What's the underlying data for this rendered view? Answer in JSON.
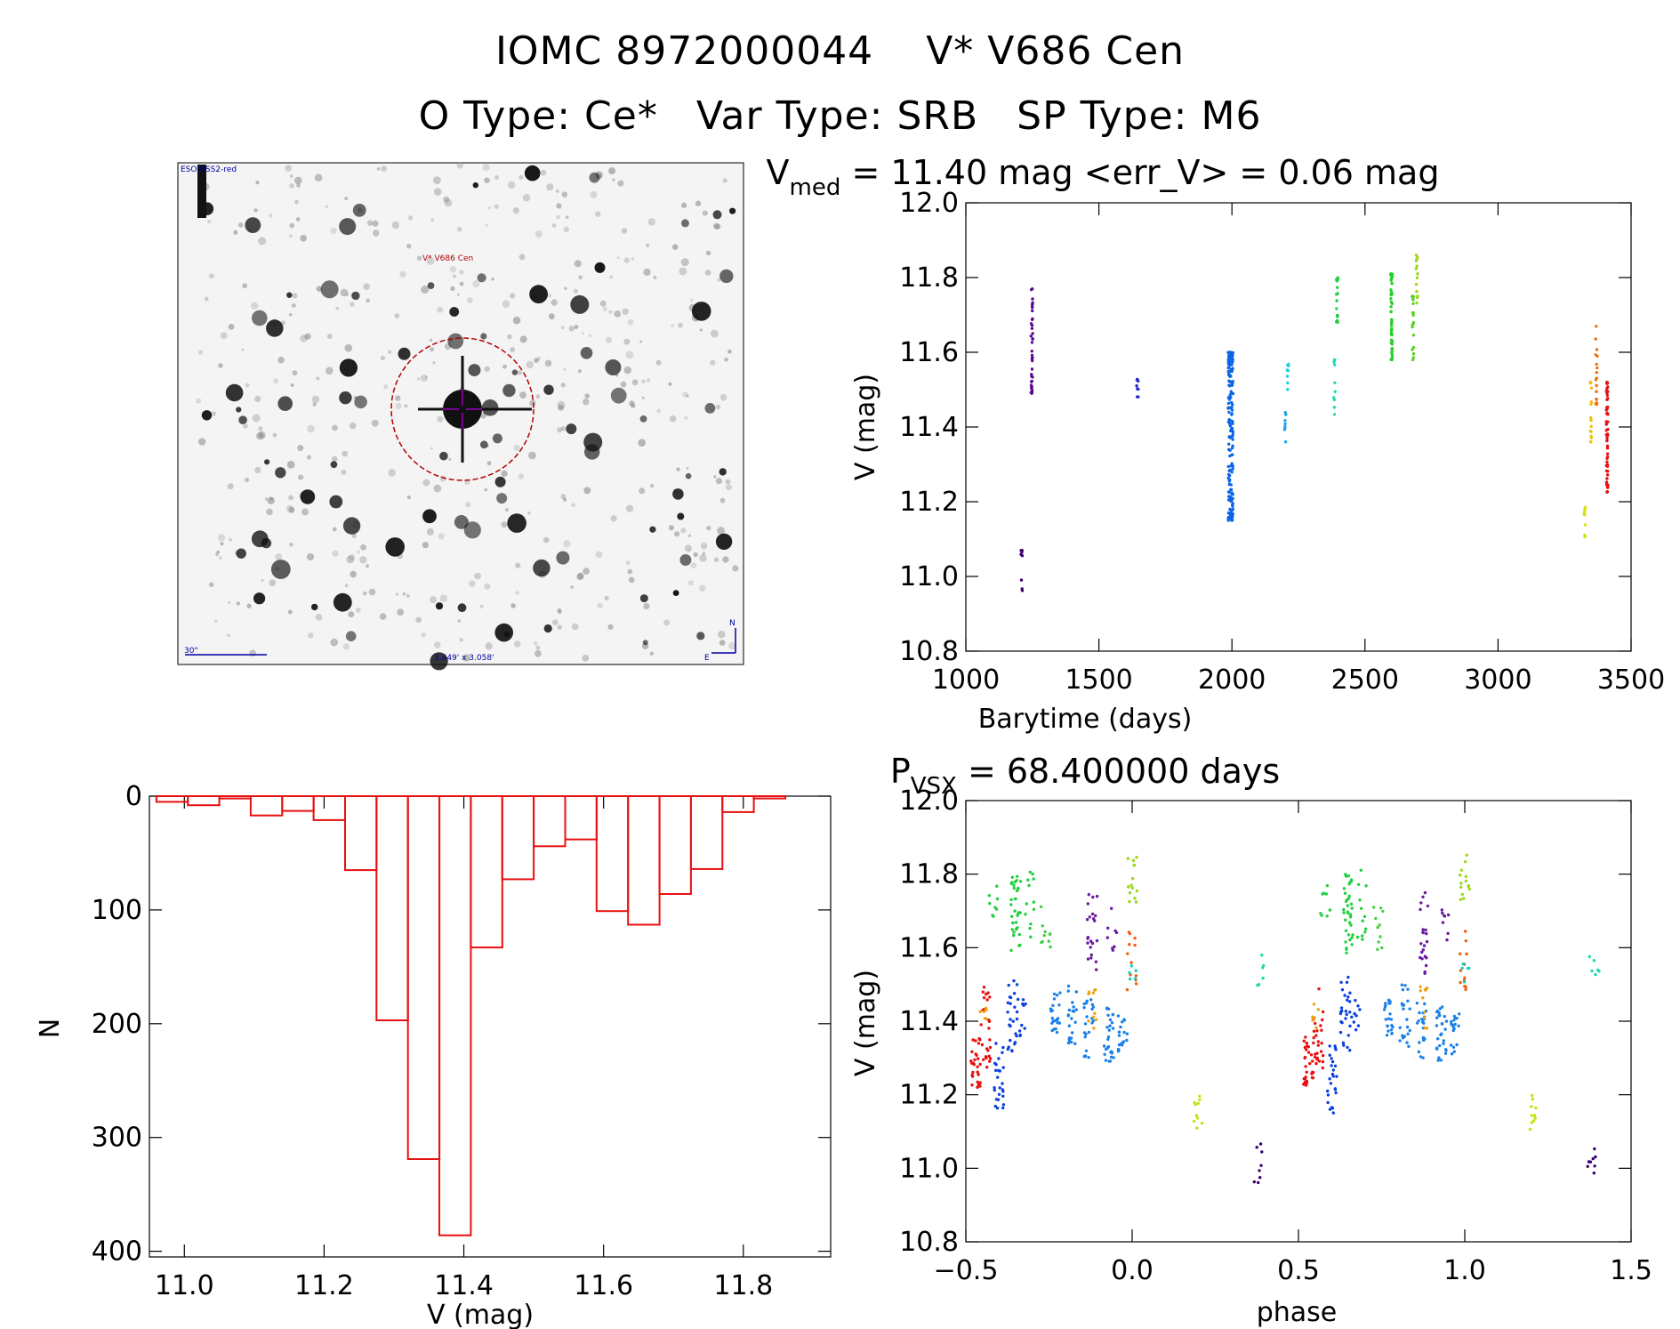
{
  "header": {
    "catalog_id": "IOMC 8972000044",
    "star_name": "V* V686 Cen",
    "otype": "O Type: Ce*",
    "vartype": "Var Type: SRB",
    "sptype": "SP Type: M6"
  },
  "finder": {
    "survey_label": "ESO USS2-red",
    "target_label": "V* V686 Cen",
    "scale_label": "30\"",
    "fov_label": "3.449' x 3.058'",
    "north_label": "N",
    "east_label": "E",
    "colors": {
      "background": "#f4f4f4",
      "stars": "#111111",
      "circle": "#b40000",
      "reticle": "#9a00c0",
      "annotation": "#0000a0"
    }
  },
  "chart_data": [
    {
      "id": "lightcurve",
      "type": "scatter",
      "title_main": "V",
      "title_sub": "med",
      "title_rest": " = 11.40 mag <err_V> = 0.06 mag",
      "xlabel": "Barytime (days)",
      "ylabel": "V (mag)",
      "xlim": [
        1000,
        3500
      ],
      "ylim": [
        12.0,
        10.8
      ],
      "xticks": [
        "1000",
        "1500",
        "2000",
        "2500",
        "3000",
        "3500"
      ],
      "yticks": [
        "10.8",
        "11.0",
        "11.2",
        "11.4",
        "11.6",
        "11.8",
        "12.0"
      ],
      "grid": false,
      "groups": [
        {
          "t": 1210,
          "ymin": 10.96,
          "ymax": 11.07,
          "n": 8,
          "color": "#3c0070"
        },
        {
          "t": 1248,
          "ymin": 11.49,
          "ymax": 11.77,
          "n": 40,
          "color": "#5a0a90"
        },
        {
          "t": 1645,
          "ymin": 11.48,
          "ymax": 11.53,
          "n": 8,
          "color": "#2828c8"
        },
        {
          "t": 1995,
          "ymin": 11.15,
          "ymax": 11.6,
          "n": 180,
          "color": "#0a64e6"
        },
        {
          "t": 2200,
          "ymin": 11.36,
          "ymax": 11.44,
          "n": 8,
          "color": "#1aa4e8"
        },
        {
          "t": 2210,
          "ymin": 11.5,
          "ymax": 11.57,
          "n": 8,
          "color": "#1ad0d8"
        },
        {
          "t": 2385,
          "ymin": 11.43,
          "ymax": 11.58,
          "n": 10,
          "color": "#20d8b0"
        },
        {
          "t": 2395,
          "ymin": 11.68,
          "ymax": 11.8,
          "n": 18,
          "color": "#20d040"
        },
        {
          "t": 2600,
          "ymin": 11.58,
          "ymax": 11.81,
          "n": 60,
          "color": "#2ad02a"
        },
        {
          "t": 2680,
          "ymin": 11.58,
          "ymax": 11.75,
          "n": 20,
          "color": "#5ad024"
        },
        {
          "t": 2695,
          "ymin": 11.73,
          "ymax": 11.86,
          "n": 15,
          "color": "#9ad818"
        },
        {
          "t": 3325,
          "ymin": 11.1,
          "ymax": 11.21,
          "n": 10,
          "color": "#d8e010"
        },
        {
          "t": 3350,
          "ymin": 11.36,
          "ymax": 11.52,
          "n": 18,
          "color": "#f0c010"
        },
        {
          "t": 3370,
          "ymin": 11.46,
          "ymax": 11.67,
          "n": 18,
          "color": "#f07010"
        },
        {
          "t": 3410,
          "ymin": 11.22,
          "ymax": 11.52,
          "n": 55,
          "color": "#e81010"
        }
      ]
    },
    {
      "id": "histogram",
      "type": "bar",
      "xlabel": "V (mag)",
      "ylabel": "N",
      "xlim": [
        10.95,
        11.925
      ],
      "ylim": [
        0,
        405
      ],
      "xticks": [
        "11.0",
        "11.2",
        "11.4",
        "11.6",
        "11.8"
      ],
      "yticks": [
        "0",
        "100",
        "200",
        "300",
        "400"
      ],
      "bin_width": 0.045,
      "bin_starts": [
        10.96,
        11.005,
        11.05,
        11.095,
        11.14,
        11.185,
        11.23,
        11.275,
        11.32,
        11.365,
        11.41,
        11.455,
        11.5,
        11.545,
        11.59,
        11.635,
        11.68,
        11.725,
        11.77,
        11.815,
        11.86
      ],
      "values": [
        5,
        8,
        2,
        17,
        13,
        21,
        65,
        197,
        319,
        386,
        133,
        73,
        44,
        38,
        101,
        113,
        86,
        64,
        14,
        2,
        0
      ],
      "color": "#e81010"
    },
    {
      "id": "phase",
      "type": "scatter",
      "title_main": "P",
      "title_sub": "VSX",
      "title_rest": " = 68.400000 days",
      "xlabel": "phase",
      "ylabel": "V (mag)",
      "xlim": [
        -0.5,
        1.5
      ],
      "ylim": [
        12.0,
        10.8
      ],
      "xticks": [
        "−0.5",
        "0.0",
        "0.5",
        "1.0",
        "1.5"
      ],
      "yticks": [
        "10.8",
        "11.0",
        "11.2",
        "11.4",
        "11.6",
        "11.8",
        "12.0"
      ],
      "grid": false,
      "groups": [
        {
          "p": -0.47,
          "ymin": 11.22,
          "ymax": 11.36,
          "n": 30,
          "color": "#e81010"
        },
        {
          "p": -0.44,
          "ymin": 11.26,
          "ymax": 11.5,
          "n": 25,
          "color": "#e81010"
        },
        {
          "p": -0.45,
          "ymin": 11.38,
          "ymax": 11.45,
          "n": 6,
          "color": "#f0a010"
        },
        {
          "p": -0.4,
          "ymin": 11.15,
          "ymax": 11.34,
          "n": 25,
          "color": "#0a40e0"
        },
        {
          "p": -0.36,
          "ymin": 11.3,
          "ymax": 11.52,
          "n": 25,
          "color": "#0a40e0"
        },
        {
          "p": -0.33,
          "ymin": 11.36,
          "ymax": 11.46,
          "n": 10,
          "color": "#0a40e0"
        },
        {
          "p": -0.42,
          "ymin": 11.68,
          "ymax": 11.78,
          "n": 8,
          "color": "#20d040"
        },
        {
          "p": -0.35,
          "ymin": 11.58,
          "ymax": 11.8,
          "n": 35,
          "color": "#20d040"
        },
        {
          "p": -0.31,
          "ymin": 11.62,
          "ymax": 11.82,
          "n": 12,
          "color": "#20d040"
        },
        {
          "p": -0.26,
          "ymin": 11.59,
          "ymax": 11.72,
          "n": 10,
          "color": "#40d040"
        },
        {
          "p": -0.23,
          "ymin": 11.36,
          "ymax": 11.48,
          "n": 22,
          "color": "#1a80e8"
        },
        {
          "p": -0.18,
          "ymin": 11.33,
          "ymax": 11.5,
          "n": 22,
          "color": "#1a80e8"
        },
        {
          "p": -0.13,
          "ymin": 11.3,
          "ymax": 11.46,
          "n": 22,
          "color": "#1a80e8"
        },
        {
          "p": -0.07,
          "ymin": 11.29,
          "ymax": 11.44,
          "n": 28,
          "color": "#1a80e8"
        },
        {
          "p": -0.03,
          "ymin": 11.31,
          "ymax": 11.42,
          "n": 18,
          "color": "#1a80e8"
        },
        {
          "p": -0.12,
          "ymin": 11.38,
          "ymax": 11.5,
          "n": 10,
          "color": "#f0a010"
        },
        {
          "p": -0.12,
          "ymin": 11.53,
          "ymax": 11.75,
          "n": 22,
          "color": "#6a1aa0"
        },
        {
          "p": -0.06,
          "ymin": 11.58,
          "ymax": 11.73,
          "n": 8,
          "color": "#6a1aa0"
        },
        {
          "p": 0.0,
          "ymin": 11.48,
          "ymax": 11.65,
          "n": 12,
          "color": "#f06010"
        },
        {
          "p": 0.0,
          "ymin": 11.5,
          "ymax": 11.58,
          "n": 5,
          "color": "#10d0c0"
        },
        {
          "p": 0.0,
          "ymin": 11.72,
          "ymax": 11.86,
          "n": 14,
          "color": "#9ad818"
        },
        {
          "p": 0.2,
          "ymin": 11.1,
          "ymax": 11.2,
          "n": 10,
          "color": "#c8e010"
        },
        {
          "p": 0.38,
          "ymin": 10.96,
          "ymax": 11.07,
          "n": 8,
          "color": "#3c0070"
        },
        {
          "p": 0.39,
          "ymin": 11.49,
          "ymax": 11.58,
          "n": 6,
          "color": "#20d8b0"
        }
      ]
    }
  ]
}
